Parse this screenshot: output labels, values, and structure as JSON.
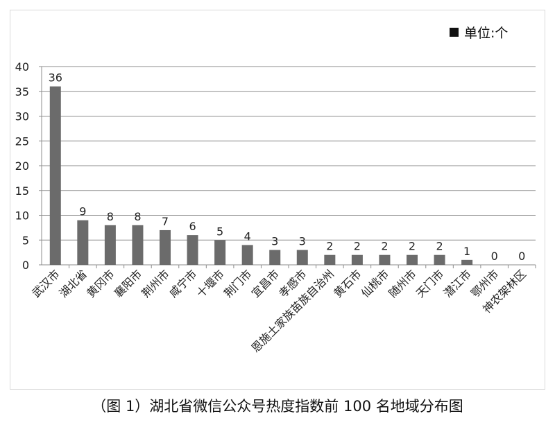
{
  "chart_data": {
    "type": "bar",
    "legend_label": "单位:个",
    "legend_placement": "top-right",
    "categories": [
      "武汉市",
      "湖北省",
      "黄冈市",
      "襄阳市",
      "荆州市",
      "咸宁市",
      "十堰市",
      "荆门市",
      "宜昌市",
      "孝感市",
      "恩施土家族苗族自治州",
      "黄石市",
      "仙桃市",
      "随州市",
      "天门市",
      "潜江市",
      "鄂州市",
      "神农架林区"
    ],
    "values": [
      36,
      9,
      8,
      8,
      7,
      6,
      5,
      4,
      3,
      3,
      2,
      2,
      2,
      2,
      2,
      1,
      0,
      0
    ],
    "ylim": [
      0,
      40
    ],
    "yticks": [
      0,
      5,
      10,
      15,
      20,
      25,
      30,
      35,
      40
    ],
    "grid": true,
    "bar_color": "#6b6b6b"
  },
  "caption": "（图 1）湖北省微信公众号热度指数前 100 名地域分布图"
}
